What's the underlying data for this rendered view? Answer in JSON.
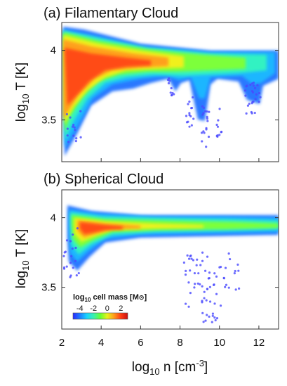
{
  "chart_data": [
    {
      "type": "heatmap",
      "title": "(a) Filamentary Cloud",
      "ylabel_base": "log",
      "ylabel_sub": "10",
      "ylabel_rest": " T [K]",
      "xlim": [
        2,
        13
      ],
      "ylim": [
        3.2,
        4.2
      ],
      "yticks": [
        {
          "value": 3.5,
          "label": "3.5"
        },
        {
          "value": 4.0,
          "label": "4"
        }
      ],
      "ridge": [
        [
          2.1,
          3.97
        ],
        [
          3.0,
          3.98
        ],
        [
          4.0,
          3.98
        ],
        [
          5.0,
          3.97
        ],
        [
          6.0,
          3.97
        ],
        [
          7.0,
          3.96
        ],
        [
          8.0,
          3.96
        ],
        [
          9.0,
          3.97
        ],
        [
          10.0,
          3.97
        ],
        [
          11.0,
          3.96
        ],
        [
          12.0,
          3.95
        ],
        [
          12.9,
          3.95
        ]
      ],
      "notes": "Temperature vs density phase diagram colored by cell mass; broad hot region at low density (n 2-5) spanning T 3.3-4.1, with cooling tails near n 7.5, 8.5, 9.3, 10.0 and 11.5-12"
    },
    {
      "type": "heatmap",
      "title": "(b) Spherical Cloud",
      "ylabel_base": "log",
      "ylabel_sub": "10",
      "ylabel_rest": " T [K]",
      "xlim": [
        2,
        13
      ],
      "ylim": [
        3.2,
        4.2
      ],
      "yticks": [
        {
          "value": 3.5,
          "label": "3.5"
        },
        {
          "value": 4.0,
          "label": "4"
        }
      ],
      "xticks": [
        {
          "value": 2,
          "label": "2"
        },
        {
          "value": 4,
          "label": "4"
        },
        {
          "value": 6,
          "label": "6"
        },
        {
          "value": 8,
          "label": "8"
        },
        {
          "value": 10,
          "label": "10"
        },
        {
          "value": 12,
          "label": "12"
        }
      ],
      "xlabel_base": "log",
      "xlabel_sub": "10",
      "xlabel_mid": " n [cm",
      "xlabel_sup": "-3",
      "xlabel_end": "]",
      "ridge": [
        [
          2.3,
          3.94
        ],
        [
          3.0,
          3.93
        ],
        [
          4.0,
          3.93
        ],
        [
          5.0,
          3.95
        ],
        [
          6.0,
          3.96
        ],
        [
          7.0,
          3.97
        ],
        [
          8.0,
          3.97
        ],
        [
          9.0,
          3.96
        ],
        [
          10.0,
          3.96
        ],
        [
          11.0,
          3.95
        ],
        [
          12.0,
          3.95
        ],
        [
          12.9,
          3.94
        ]
      ],
      "notes": "Concentrated peak at n 3-4, T ~3.9; narrow band continuing to n 13; sparse low-mass scatter at n 8-11 down to T 3.2"
    }
  ],
  "colorbar": {
    "title_base": "log",
    "title_sub": "10",
    "title_rest": " cell mass [M",
    "title_sym": "⊙",
    "title_end": "]",
    "range": [
      -5,
      3
    ],
    "ticks": [
      {
        "value": -4,
        "label": "-4"
      },
      {
        "value": -2,
        "label": "-2"
      },
      {
        "value": 0,
        "label": "0"
      },
      {
        "value": 2,
        "label": "2"
      }
    ],
    "colors": [
      "#2a2aff",
      "#1e7bff",
      "#18d3ff",
      "#39f0b0",
      "#66ff33",
      "#e8f21c",
      "#ff9a1a",
      "#ff3c12",
      "#c81010"
    ]
  }
}
